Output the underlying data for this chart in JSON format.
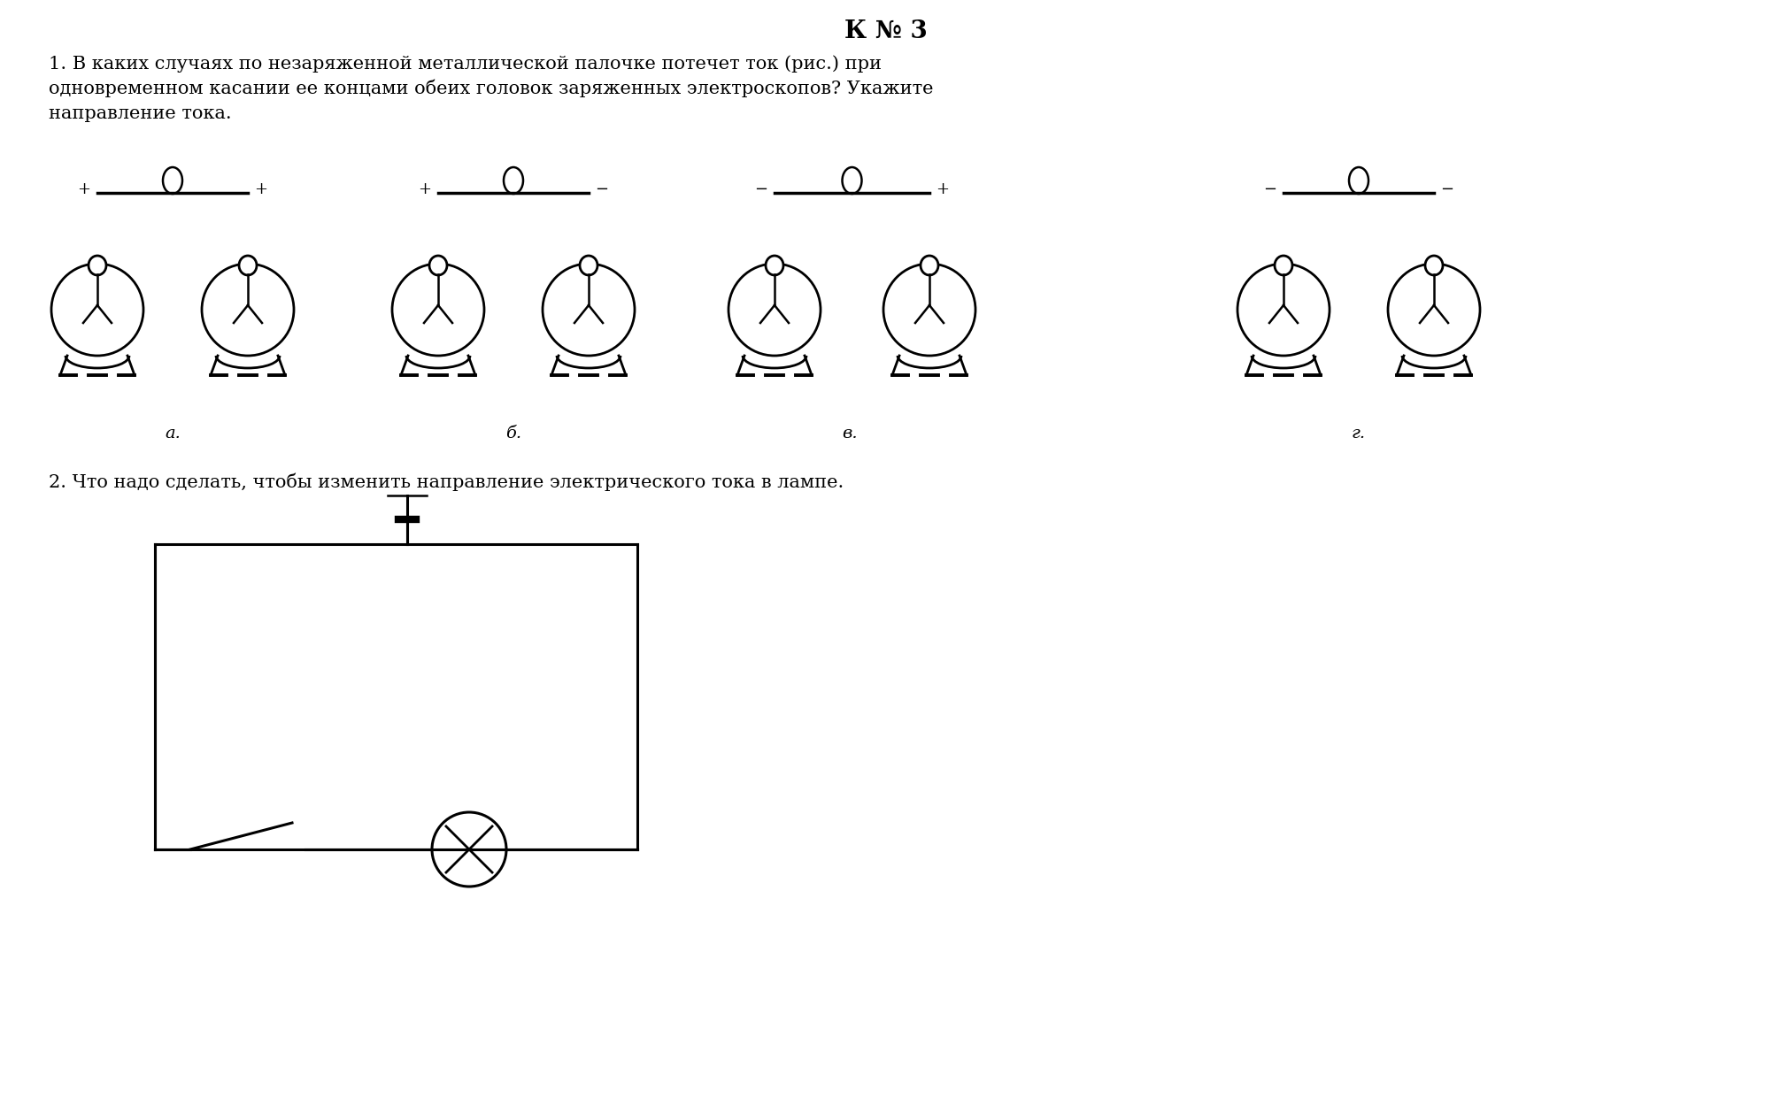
{
  "title": "К № 3",
  "q1_line1": "1. В каких случаях по незаряженной металлической палочке потечет ток (рис.) при",
  "q1_line2": "одновременном касании ее концами обеих головок заряженных электроскопов? Укажите",
  "q1_line3": "направление тока.",
  "q2_text": "2. Что надо сделать, чтобы изменить направление электрического тока в лампе.",
  "pairs": [
    {
      "charge_left": "+",
      "charge_right": "+",
      "label": "а."
    },
    {
      "charge_left": "+",
      "charge_right": "−",
      "label": "б."
    },
    {
      "charge_left": "−",
      "charge_right": "+",
      "label": "в."
    },
    {
      "charge_left": "−",
      "charge_right": "−",
      "label": "г."
    }
  ],
  "bg_color": "#ffffff",
  "text_color": "#000000",
  "line_color": "#000000",
  "title_fontsize": 20,
  "body_fontsize": 15,
  "label_fontsize": 14
}
